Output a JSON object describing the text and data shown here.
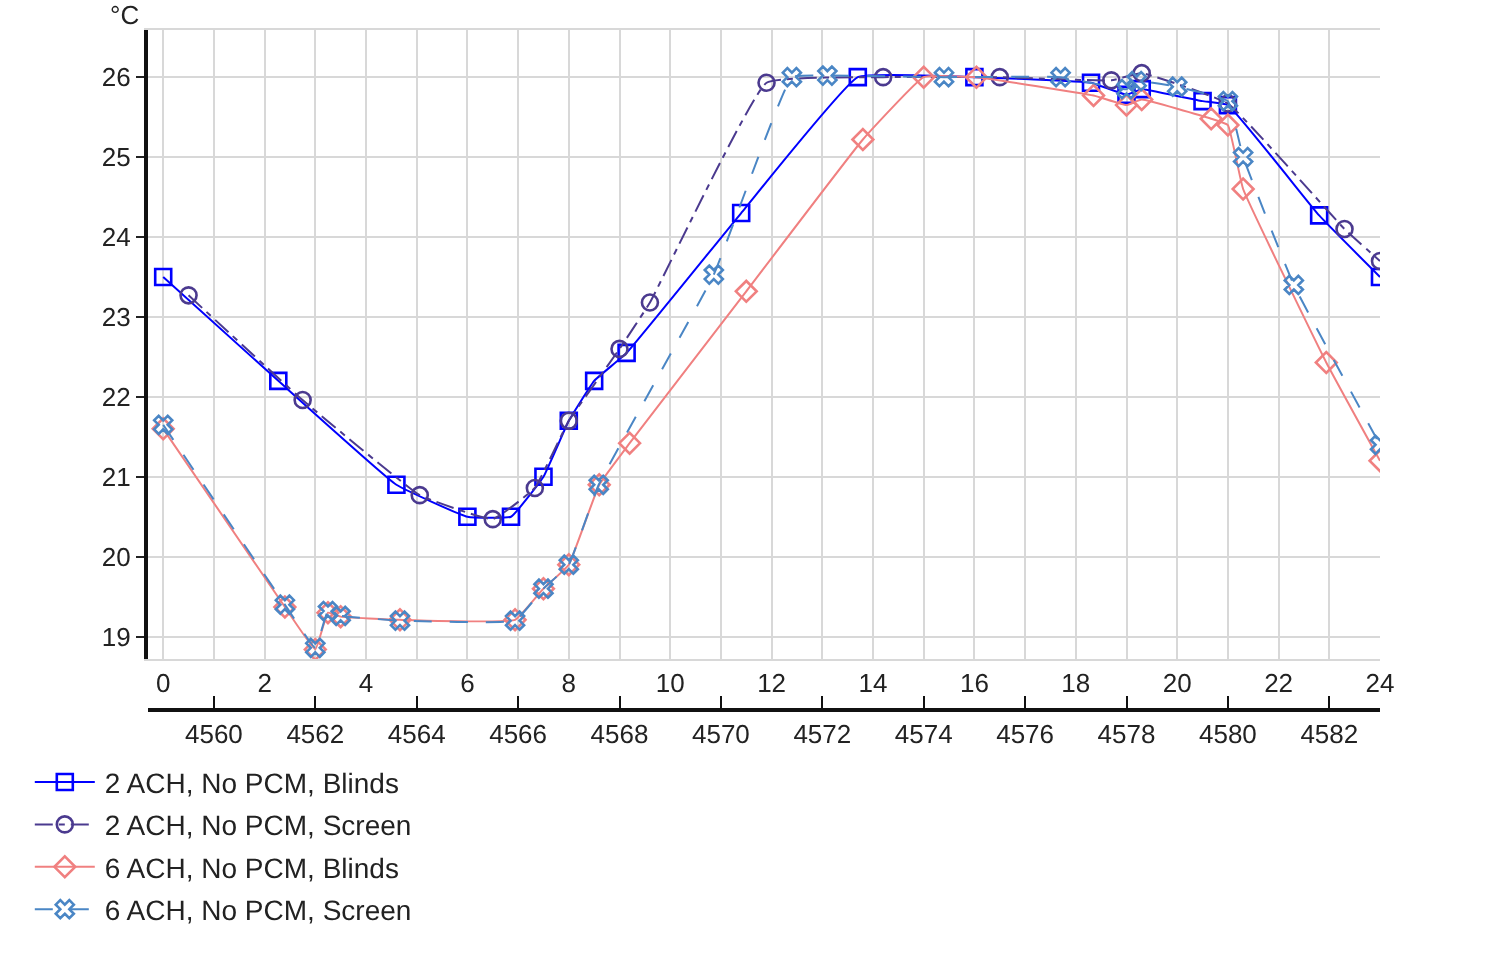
{
  "chart_data": {
    "type": "line",
    "ylabel": "°C",
    "xlim": [
      -0.3,
      24
    ],
    "ylim": [
      18.72,
      26.59
    ],
    "xticks": [
      0,
      {
        "value": 1,
        "label": null
      },
      2,
      {
        "value": 3,
        "label": null
      },
      4,
      {
        "value": 5,
        "label": null
      },
      6,
      {
        "value": 7,
        "label": null
      },
      8,
      {
        "value": 9,
        "label": null
      },
      10,
      {
        "value": 11,
        "label": null
      },
      12,
      {
        "value": 13,
        "label": null
      },
      14,
      {
        "value": 15,
        "label": null
      },
      16,
      {
        "value": 17,
        "label": null
      },
      18,
      {
        "value": 19,
        "label": null
      },
      20,
      {
        "value": 21,
        "label": null
      },
      22,
      {
        "value": 23,
        "label": null
      },
      24
    ],
    "yticks": [
      19,
      20,
      21,
      22,
      23,
      24,
      25,
      26
    ],
    "x2lim": [
      4558.7,
      4583
    ],
    "x2ticks": [
      4560,
      4562,
      4564,
      4566,
      4568,
      4570,
      4572,
      4574,
      4576,
      4578,
      4580,
      4582
    ],
    "grid": true,
    "legend": "bottom left",
    "series": [
      {
        "name": "2 ACH, No PCM, Blinds",
        "color": "#0000ff",
        "marker": "square",
        "line_style": "solid",
        "x": [
          0,
          2.27,
          4.6,
          6,
          6.86,
          7.5,
          8,
          8.5,
          9.14,
          11.4,
          13.7,
          16,
          18.3,
          19,
          19.3,
          20.5,
          21,
          22.8,
          24
        ],
        "values": [
          23.5,
          22.2,
          20.9,
          20.5,
          20.5,
          21.0,
          21.7,
          22.2,
          22.55,
          24.3,
          26.0,
          26.0,
          25.93,
          25.78,
          25.85,
          25.7,
          25.65,
          24.27,
          23.5
        ]
      },
      {
        "name": "2 ACH, No PCM, Screen",
        "color": "#4b3a8f",
        "marker": "circle",
        "line_style": "dashdot",
        "x": [
          0.5,
          2.75,
          5.06,
          6.5,
          7.33,
          8,
          9,
          9.6,
          11.9,
          14.2,
          16.5,
          18.7,
          19.3,
          21.0,
          23.3,
          24
        ],
        "values": [
          23.27,
          21.96,
          20.77,
          20.47,
          20.86,
          21.7,
          22.6,
          23.18,
          25.93,
          26.0,
          26.0,
          25.96,
          26.05,
          25.67,
          24.1,
          23.7
        ]
      },
      {
        "name": "6 ACH, No PCM, Blinds",
        "color": "#f08080",
        "marker": "diamond",
        "line_style": "solid",
        "x": [
          0,
          2.4,
          3.0,
          3.25,
          3.5,
          4.67,
          6.94,
          7.5,
          8,
          8.6,
          9.2,
          11.5,
          13.8,
          15,
          16.04,
          18.35,
          19,
          19.3,
          20.67,
          21,
          21.3,
          22.94,
          24
        ],
        "values": [
          21.6,
          19.37,
          18.84,
          19.3,
          19.25,
          19.21,
          19.21,
          19.6,
          19.9,
          20.9,
          21.42,
          23.32,
          25.22,
          26.0,
          26.0,
          25.77,
          25.65,
          25.72,
          25.48,
          25.4,
          24.6,
          22.43,
          21.2
        ]
      },
      {
        "name": "6 ACH, No PCM, Screen",
        "color": "#4a86c5",
        "marker": "cross",
        "line_style": "dashed",
        "x": [
          0,
          2.4,
          3.0,
          3.25,
          3.5,
          4.67,
          6.94,
          7.5,
          8,
          8.59,
          10.86,
          12.4,
          13.1,
          15.4,
          17.7,
          19,
          19.2,
          20.0,
          21,
          21.3,
          22.3,
          24
        ],
        "values": [
          21.65,
          19.4,
          18.86,
          19.32,
          19.26,
          19.2,
          19.2,
          19.6,
          19.9,
          20.9,
          23.53,
          26.0,
          26.02,
          26.0,
          26.0,
          25.85,
          25.95,
          25.88,
          25.7,
          25.0,
          23.4,
          21.4
        ]
      }
    ]
  }
}
